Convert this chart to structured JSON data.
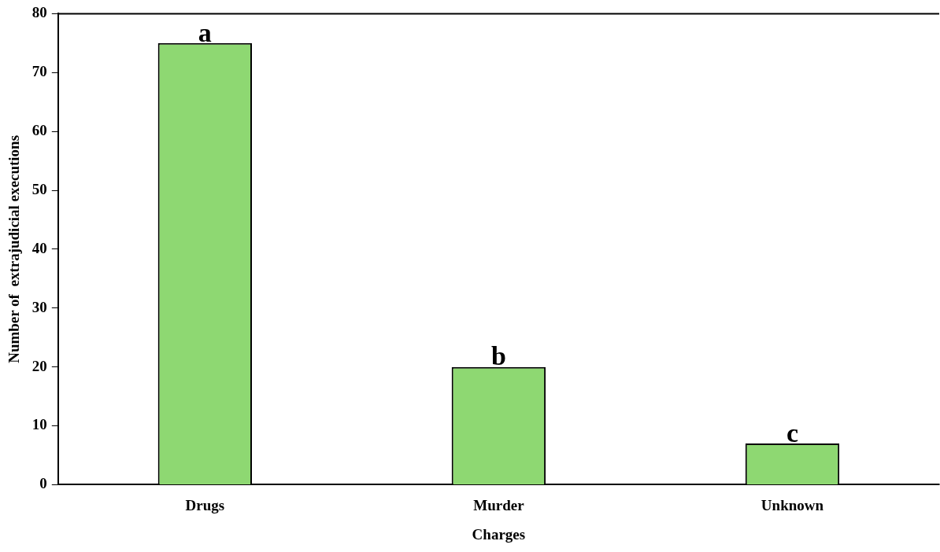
{
  "chart_data": {
    "type": "bar",
    "xlabel": "Charges",
    "ylabel": "Number of  extrajudicial executions",
    "categories": [
      "Drugs",
      "Murder",
      "Unknown"
    ],
    "values": [
      75,
      20,
      7
    ],
    "color": "#8ed872",
    "ylim": [
      0,
      80
    ],
    "yticks": [
      0,
      10,
      20,
      30,
      40,
      50,
      60,
      70,
      80
    ],
    "grid": false,
    "legend": false,
    "annotations": [
      {
        "text": "a",
        "x": "Drugs",
        "y": 75
      },
      {
        "text": "b",
        "x": "Murder",
        "y": 20
      },
      {
        "text": "c",
        "x": "Unknown",
        "y": 7
      }
    ]
  }
}
